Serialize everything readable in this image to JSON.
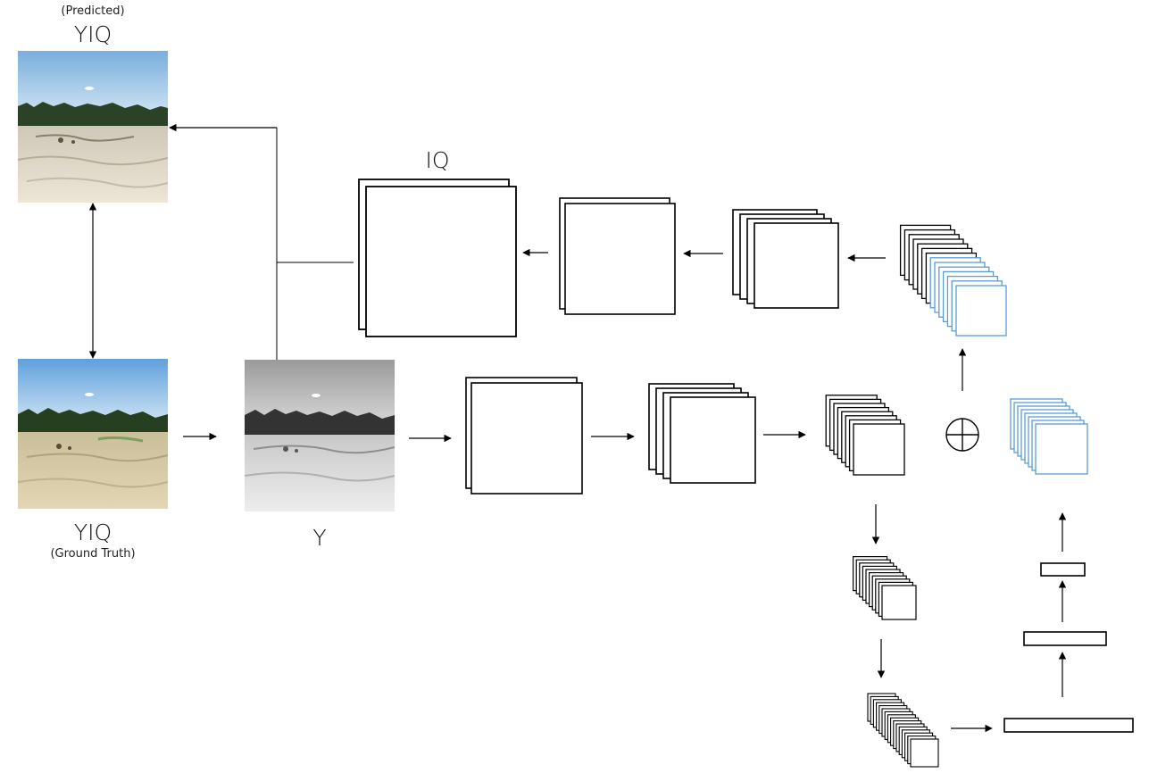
{
  "labels": {
    "predicted_caption": "(Predicted)",
    "predicted_title": "YIQ",
    "ground_truth_title": "YIQ",
    "ground_truth_caption": "(Ground Truth)",
    "y_label": "Y",
    "iq_label": "IQ"
  },
  "images": {
    "predicted": "color landscape photo: sky, tree line, sandy ground",
    "ground_truth": "color landscape photo: sky, tree line, sandy ground",
    "y_channel": "grayscale landscape photo"
  },
  "colors": {
    "stroke": "#000000",
    "blue_stack": "#5b9bd5",
    "sky_top": "#6fa8dc",
    "sky_bottom": "#cfe3f2",
    "trees": "#2f4a2a",
    "sand": "#d9ccaa"
  },
  "icons": {
    "combine": "circle-plus-icon"
  }
}
